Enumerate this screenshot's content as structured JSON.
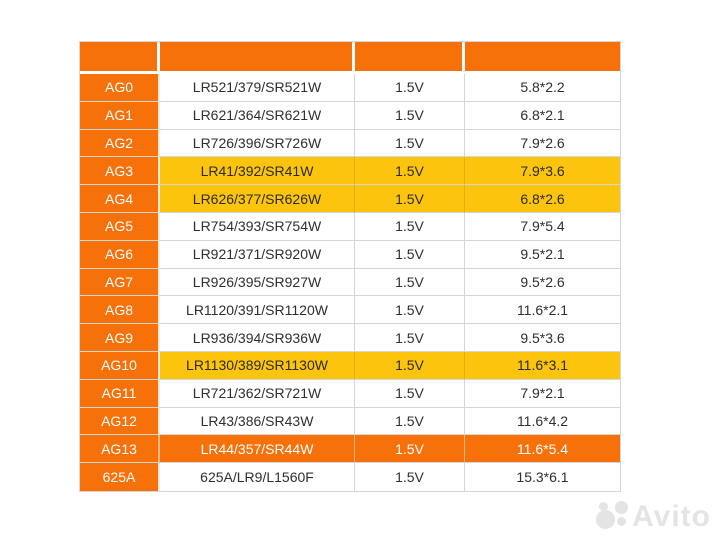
{
  "chart_data": {
    "type": "table",
    "columns": [
      "",
      "",
      "",
      ""
    ],
    "rows": [
      {
        "id": "AG0",
        "model": "LR521/379/SR521W",
        "voltage": "1.5V",
        "size": "5.8*2.2",
        "highlight": "none"
      },
      {
        "id": "AG1",
        "model": "LR621/364/SR621W",
        "voltage": "1.5V",
        "size": "6.8*2.1",
        "highlight": "none"
      },
      {
        "id": "AG2",
        "model": "LR726/396/SR726W",
        "voltage": "1.5V",
        "size": "7.9*2.6",
        "highlight": "none"
      },
      {
        "id": "AG3",
        "model": "LR41/392/SR41W",
        "voltage": "1.5V",
        "size": "7.9*3.6",
        "highlight": "yellow"
      },
      {
        "id": "AG4",
        "model": "LR626/377/SR626W",
        "voltage": "1.5V",
        "size": "6.8*2.6",
        "highlight": "yellow"
      },
      {
        "id": "AG5",
        "model": "LR754/393/SR754W",
        "voltage": "1.5V",
        "size": "7.9*5.4",
        "highlight": "none"
      },
      {
        "id": "AG6",
        "model": "LR921/371/SR920W",
        "voltage": "1.5V",
        "size": "9.5*2.1",
        "highlight": "none"
      },
      {
        "id": "AG7",
        "model": "LR926/395/SR927W",
        "voltage": "1.5V",
        "size": "9.5*2.6",
        "highlight": "none"
      },
      {
        "id": "AG8",
        "model": "LR1120/391/SR1120W",
        "voltage": "1.5V",
        "size": "11.6*2.1",
        "highlight": "none"
      },
      {
        "id": "AG9",
        "model": "LR936/394/SR936W",
        "voltage": "1.5V",
        "size": "9.5*3.6",
        "highlight": "none"
      },
      {
        "id": "AG10",
        "model": "LR1130/389/SR1130W",
        "voltage": "1.5V",
        "size": "11.6*3.1",
        "highlight": "yellow"
      },
      {
        "id": "AG11",
        "model": "LR721/362/SR721W",
        "voltage": "1.5V",
        "size": "7.9*2.1",
        "highlight": "none"
      },
      {
        "id": "AG12",
        "model": "LR43/386/SR43W",
        "voltage": "1.5V",
        "size": "11.6*4.2",
        "highlight": "none"
      },
      {
        "id": "AG13",
        "model": "LR44/357/SR44W",
        "voltage": "1.5V",
        "size": "11.6*5.4",
        "highlight": "orange"
      },
      {
        "id": "625A",
        "model": "625A/LR9/L1560F",
        "voltage": "1.5V",
        "size": "15.3*6.1",
        "highlight": "none"
      }
    ]
  },
  "colors": {
    "orange": "#F7710A",
    "yellow": "#FCC40D",
    "border": "#D6D6D6",
    "text": "#2F2F2F",
    "watermark": "#E4E4E4"
  },
  "watermark": {
    "text": "Avito"
  }
}
